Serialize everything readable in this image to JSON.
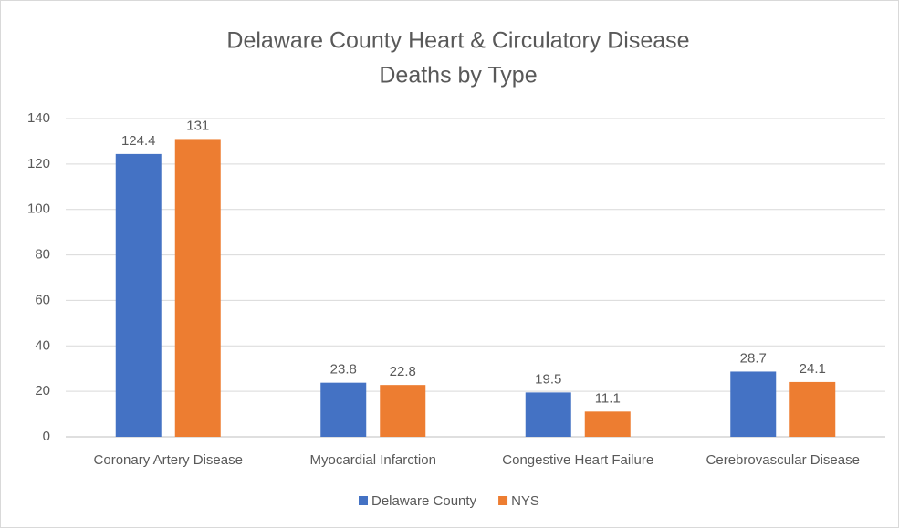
{
  "chart_data": {
    "type": "bar",
    "title": [
      "Delaware County Heart  & Circulatory Disease",
      "Deaths by Type"
    ],
    "categories": [
      "Coronary Artery Disease",
      "Myocardial Infarction",
      "Congestive Heart Failure",
      "Cerebrovascular Disease"
    ],
    "series": [
      {
        "name": "Delaware County",
        "color": "#4472c4",
        "values": [
          124.4,
          23.8,
          19.5,
          28.7
        ]
      },
      {
        "name": "NYS",
        "color": "#ed7d31",
        "values": [
          131,
          22.8,
          11.1,
          24.1
        ]
      }
    ],
    "ylim": [
      0,
      140
    ],
    "yticks": [
      0,
      20,
      40,
      60,
      80,
      100,
      120,
      140
    ],
    "grid": true,
    "legend": "bottom"
  }
}
